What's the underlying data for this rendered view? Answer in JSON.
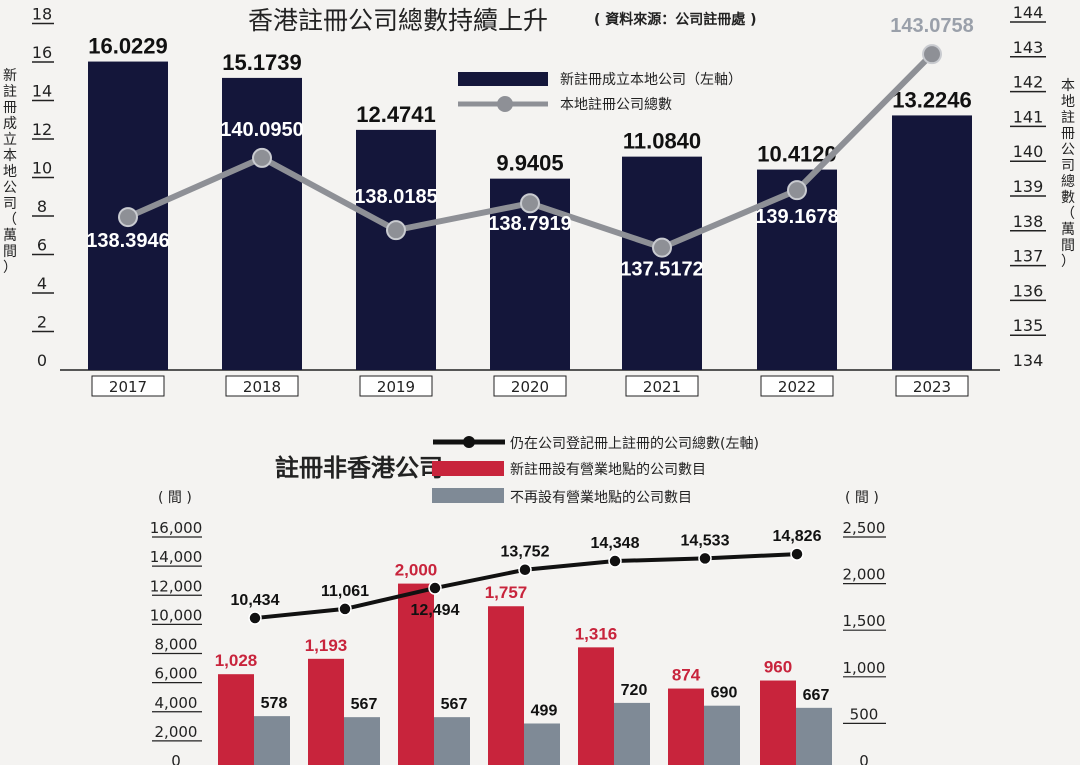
{
  "chart_data": [
    {
      "type": "bar+line",
      "title": "香港註冊公司總數持續上升",
      "source_note": "( 資料來源：公司註冊處 )",
      "categories": [
        "2017",
        "2018",
        "2019",
        "2020",
        "2021",
        "2022",
        "2023"
      ],
      "ylabel_left": "新註冊成立本地公司（萬間）",
      "ylabel_right": "本地註冊公司總數（萬間）",
      "ylim_left": [
        0,
        18
      ],
      "yticks_left": [
        0,
        2,
        4,
        6,
        8,
        10,
        12,
        14,
        16,
        18
      ],
      "ylim_right": [
        134,
        144
      ],
      "yticks_right": [
        134,
        135,
        136,
        137,
        138,
        139,
        140,
        141,
        142,
        143,
        144
      ],
      "legend_position": "top-right",
      "colors": {
        "bar": "#14163a",
        "line": "#8e9096",
        "label_line": "#9aa0aa"
      },
      "series": [
        {
          "name": "新註冊成立本地公司（左軸）",
          "axis": "left",
          "type": "bar",
          "values": [
            16.0229,
            15.1739,
            12.4741,
            9.9405,
            11.084,
            10.412,
            13.2246
          ],
          "labels": [
            "16.0229",
            "15.1739",
            "12.4741",
            "9.9405",
            "11.0840",
            "10.4120",
            "13.2246"
          ]
        },
        {
          "name": "本地註冊公司總數",
          "axis": "right",
          "type": "line",
          "values": [
            138.3946,
            140.095,
            138.0185,
            138.7919,
            137.5172,
            139.1678,
            143.0758
          ],
          "labels": [
            "138.3946",
            "140.0950",
            "138.0185",
            "138.7919",
            "137.5172",
            "139.1678",
            "143.0758"
          ]
        }
      ]
    },
    {
      "type": "bar+line",
      "title": "註冊非香港公司",
      "unit_left": "( 間 )",
      "unit_right": "( 間 )",
      "ylim_left": [
        0,
        16000
      ],
      "yticks_left": [
        "0",
        "2,000",
        "4,000",
        "6,000",
        "8,000",
        "10,000",
        "12,000",
        "14,000",
        "16,000"
      ],
      "ylim_right": [
        0,
        2500
      ],
      "yticks_right": [
        "0",
        "500",
        "1,000",
        "1,500",
        "2,000",
        "2,500"
      ],
      "legend_position": "top",
      "colors": {
        "line": "#111111",
        "red": "#c8243c",
        "grey": "#7f8a96"
      },
      "series": [
        {
          "name": "仍在公司登記冊上註冊的公司總數(左軸)",
          "axis": "left",
          "type": "line",
          "values": [
            10434,
            11061,
            12494,
            13752,
            14348,
            14533,
            14826
          ],
          "labels": [
            "10,434",
            "11,061",
            "12,494",
            "13,752",
            "14,348",
            "14,533",
            "14,826"
          ]
        },
        {
          "name": "新註冊設有營業地點的公司數目",
          "axis": "right",
          "type": "bar",
          "values": [
            1028,
            1193,
            2000,
            1757,
            1316,
            874,
            960
          ],
          "labels": [
            "1,028",
            "1,193",
            "2,000",
            "1,757",
            "1,316",
            "874",
            "960"
          ]
        },
        {
          "name": "不再設有營業地點的公司數目",
          "axis": "right",
          "type": "bar",
          "values": [
            578,
            567,
            567,
            499,
            720,
            690,
            667
          ],
          "labels": [
            "578",
            "567",
            "567",
            "499",
            "720",
            "690",
            "667"
          ]
        }
      ]
    }
  ]
}
